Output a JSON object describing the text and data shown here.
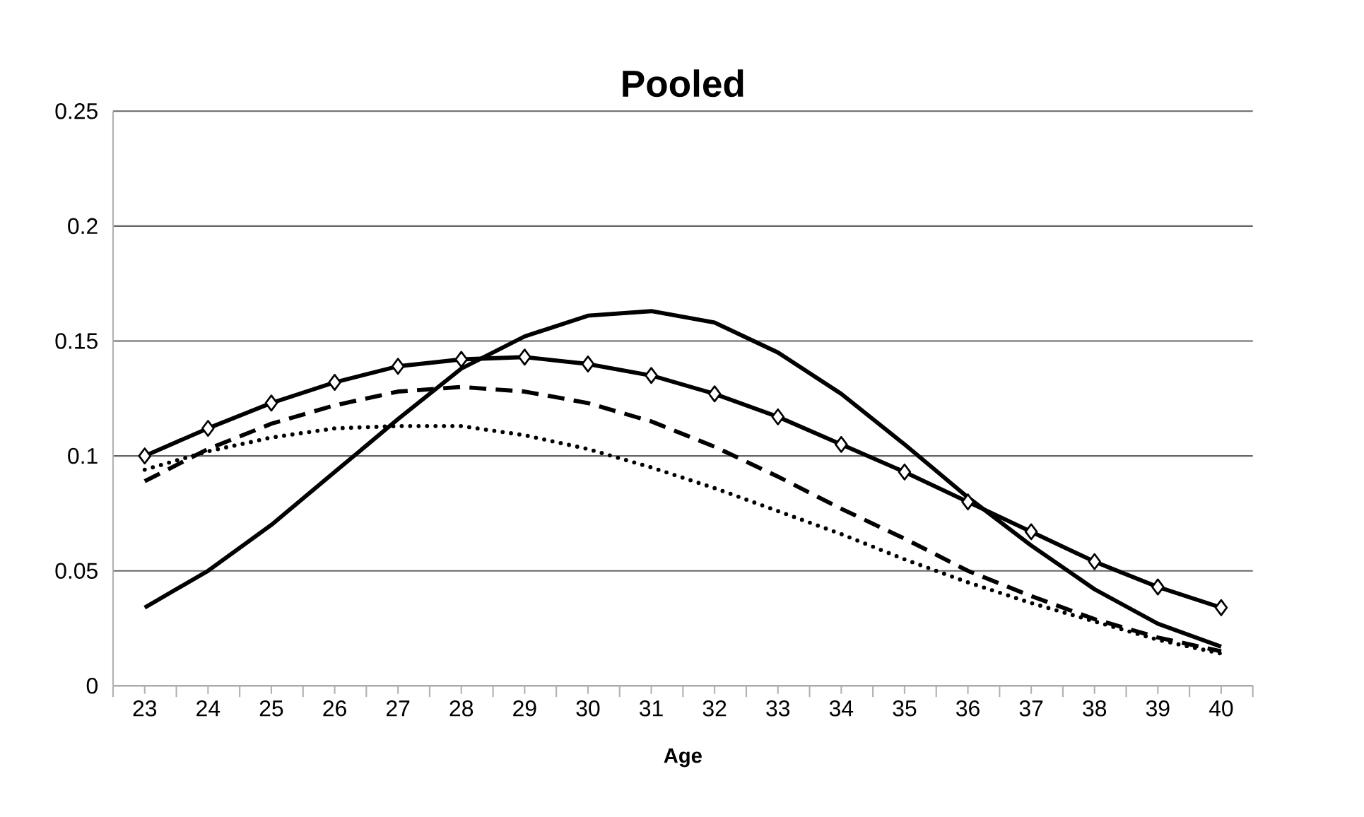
{
  "chart_data": {
    "type": "line",
    "title": "Pooled",
    "xlabel": "Age",
    "categories": [
      "23",
      "24",
      "25",
      "26",
      "27",
      "28",
      "29",
      "30",
      "31",
      "32",
      "33",
      "34",
      "35",
      "36",
      "37",
      "38",
      "39",
      "40"
    ],
    "series": [
      {
        "color": "#000000",
        "line_style": "solid",
        "marker": "none",
        "values": [
          0.034,
          0.05,
          0.07,
          0.093,
          0.116,
          0.138,
          0.152,
          0.161,
          0.163,
          0.158,
          0.145,
          0.127,
          0.105,
          0.082,
          0.061,
          0.042,
          0.027,
          0.017
        ]
      },
      {
        "color": "#000000",
        "line_style": "solid",
        "marker": "diamond",
        "values": [
          0.1,
          0.112,
          0.123,
          0.132,
          0.139,
          0.142,
          0.143,
          0.14,
          0.135,
          0.127,
          0.117,
          0.105,
          0.093,
          0.08,
          0.067,
          0.054,
          0.043,
          0.034
        ]
      },
      {
        "color": "#000000",
        "line_style": "dashed",
        "marker": "none",
        "values": [
          0.089,
          0.103,
          0.114,
          0.122,
          0.128,
          0.13,
          0.128,
          0.123,
          0.115,
          0.104,
          0.091,
          0.077,
          0.064,
          0.05,
          0.039,
          0.029,
          0.021,
          0.015
        ]
      },
      {
        "color": "#000000",
        "line_style": "dotted",
        "marker": "none",
        "values": [
          0.094,
          0.102,
          0.108,
          0.112,
          0.113,
          0.113,
          0.109,
          0.103,
          0.095,
          0.086,
          0.076,
          0.066,
          0.055,
          0.045,
          0.036,
          0.028,
          0.02,
          0.014
        ]
      }
    ],
    "ylim": [
      0,
      0.25
    ],
    "yticks": [
      0,
      0.05,
      0.1,
      0.15,
      0.2,
      0.25
    ],
    "grid": "y"
  }
}
